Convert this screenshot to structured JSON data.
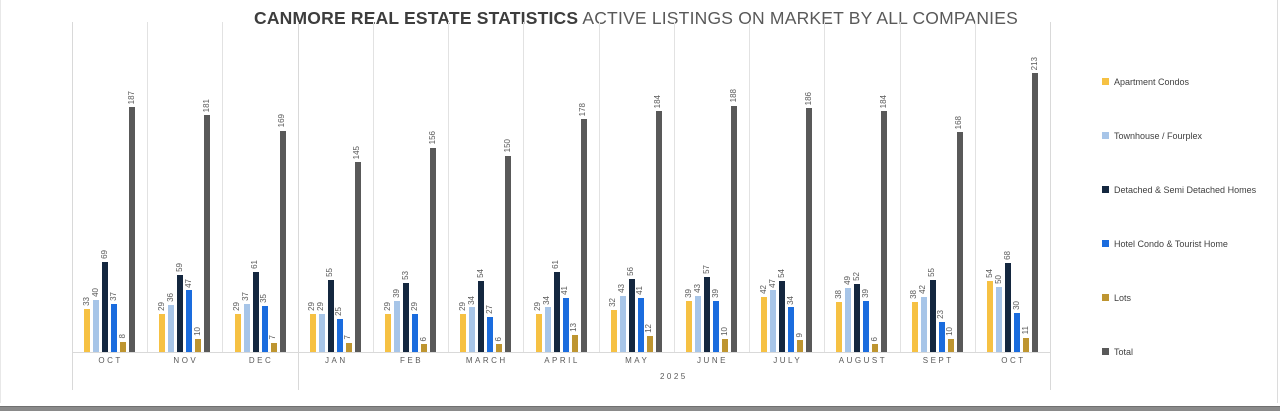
{
  "title": {
    "bold": "CANMORE REAL ESTATE STATISTICS",
    "regular": " ACTIVE LISTINGS ON MARKET BY ALL COMPANIES"
  },
  "colors": {
    "apartment": "#F6C143",
    "townhouse": "#A7C5E8",
    "detached": "#14273F",
    "hotel": "#1A6CDE",
    "lots": "#BE9530",
    "total": "#595959",
    "gridline": "#e2e2e2",
    "label_text": "#595959"
  },
  "chart_data": {
    "type": "bar",
    "title": "CANMORE REAL ESTATE STATISTICS ACTIVE LISTINGS ON MARKET BY ALL COMPANIES",
    "categories": [
      "OCT",
      "NOV",
      "DEC",
      "JAN",
      "FEB",
      "MARCH",
      "APRIL",
      "MAY",
      "JUNE",
      "JULY",
      "AUGUST",
      "SEPT",
      "OCT"
    ],
    "year_groups": [
      {
        "label": "",
        "start": 0,
        "end": 2
      },
      {
        "label": "2025",
        "start": 3,
        "end": 12
      }
    ],
    "series": [
      {
        "name": "Apartment Condos",
        "color": "#F6C143",
        "values": [
          33,
          29,
          29,
          29,
          29,
          29,
          29,
          32,
          39,
          42,
          38,
          38,
          54
        ]
      },
      {
        "name": "Townhouse / Fourplex",
        "color": "#A7C5E8",
        "values": [
          40,
          36,
          37,
          29,
          39,
          34,
          34,
          43,
          43,
          47,
          49,
          42,
          50
        ]
      },
      {
        "name": "Detached & Semi Detached Homes",
        "color": "#14273F",
        "values": [
          69,
          59,
          61,
          55,
          53,
          54,
          61,
          56,
          57,
          54,
          52,
          55,
          68
        ]
      },
      {
        "name": "Hotel Condo & Tourist Home",
        "color": "#1A6CDE",
        "values": [
          37,
          47,
          35,
          25,
          29,
          27,
          41,
          41,
          39,
          34,
          39,
          23,
          30
        ]
      },
      {
        "name": "Lots",
        "color": "#BE9530",
        "values": [
          8,
          10,
          7,
          7,
          6,
          6,
          13,
          12,
          10,
          9,
          6,
          10,
          11
        ]
      },
      {
        "name": "Total",
        "color": "#595959",
        "values": [
          187,
          181,
          169,
          145,
          156,
          150,
          178,
          184,
          188,
          186,
          184,
          168,
          213
        ]
      }
    ],
    "xlabel": "",
    "ylabel": "",
    "ylim": [
      0,
      252
    ],
    "grid": "vertical category separators only",
    "legend_position": "right",
    "value_labels": "rotated 90deg above each bar"
  }
}
